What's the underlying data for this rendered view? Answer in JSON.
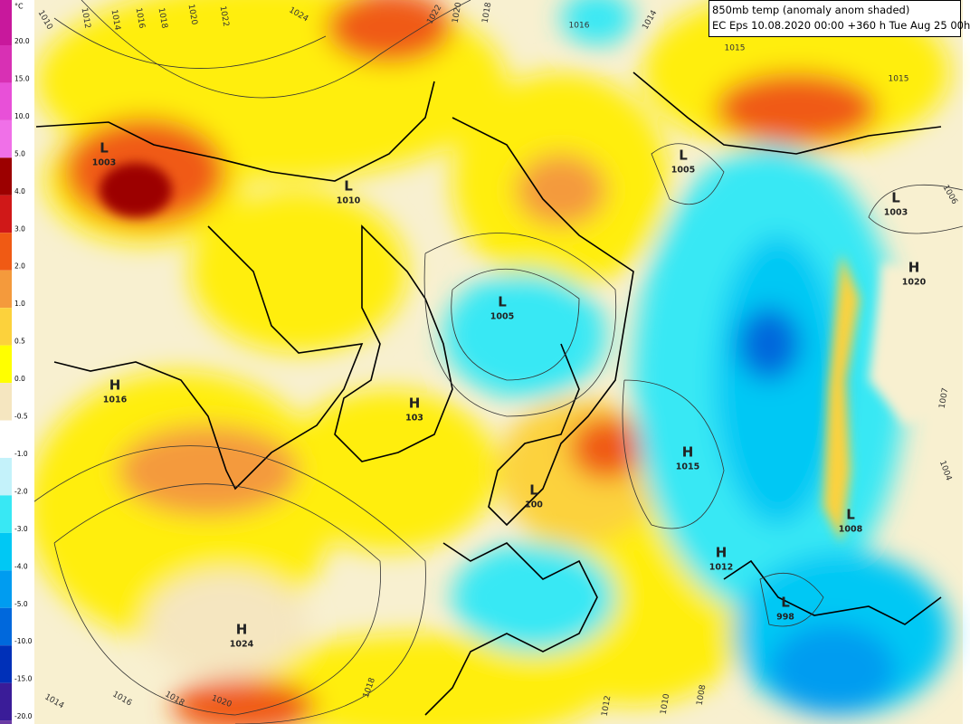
{
  "header": {
    "line1": "850mb temp (anomaly anom shaded)",
    "line2": "EC Eps 10.08.2020 00:00 +360 h Tue Aug 25 00h"
  },
  "legend": {
    "unit": "°C",
    "labels": [
      "20.0",
      "15.0",
      "10.0",
      "5.0",
      "4.0",
      "3.0",
      "2.0",
      "1.0",
      "0.5",
      "0.0",
      "-0.5",
      "-1.0",
      "-2.0",
      "-3.0",
      "-4.0",
      "-5.0",
      "-10.0",
      "-15.0",
      "-20.0"
    ],
    "colors": [
      "#c8189c",
      "#d830b4",
      "#e850d8",
      "#f070e8",
      "#9c0000",
      "#d01818",
      "#f05a14",
      "#f49a3c",
      "#fcd23c",
      "#ffff00",
      "#f5e6c0",
      "#ffffff",
      "#c4f2fa",
      "#38e8f4",
      "#00c8f4",
      "#009cf0",
      "#0068dc",
      "#0030b8",
      "#3a1c98",
      "#6a3aa4"
    ]
  },
  "centers": [
    {
      "letter": "L",
      "value": "1003"
    },
    {
      "letter": "L",
      "value": "1010"
    },
    {
      "letter": "L",
      "value": "1005"
    },
    {
      "letter": "H",
      "value": "1016"
    },
    {
      "letter": "H",
      "value": "103"
    },
    {
      "letter": "H",
      "value": "1015"
    },
    {
      "letter": "L",
      "value": "100"
    },
    {
      "letter": "L",
      "value": "1005"
    },
    {
      "letter": "L",
      "value": "1003"
    },
    {
      "letter": "H",
      "value": "1020"
    },
    {
      "letter": "H",
      "value": "1024"
    },
    {
      "letter": "L",
      "value": "998"
    },
    {
      "letter": "H",
      "value": "1012"
    },
    {
      "letter": "L",
      "value": "1008"
    }
  ],
  "isobar_labels": [
    "1010",
    "1012",
    "1014",
    "1016",
    "1018",
    "1020",
    "1022",
    "1024",
    "1022",
    "1020",
    "1018",
    "1016",
    "1014",
    "1015",
    "1015",
    "1006",
    "1007",
    "1004",
    "1014",
    "1016",
    "1018",
    "1020",
    "1018",
    "1012",
    "1010",
    "1008"
  ]
}
